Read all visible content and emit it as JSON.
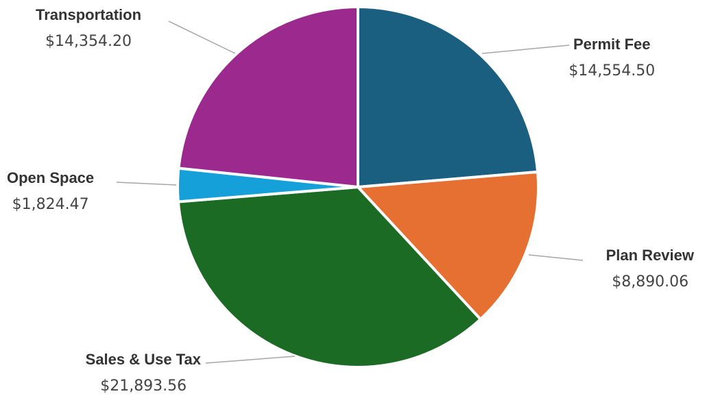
{
  "chart_data": {
    "type": "pie",
    "title": "",
    "start_angle_deg": 0,
    "direction": "clockwise",
    "slices": [
      {
        "label": "Permit Fee",
        "value": 14554.5,
        "value_label": "$14,554.50",
        "color": "#1a5e80"
      },
      {
        "label": "Plan Review",
        "value": 8890.06,
        "value_label": "$8,890.06",
        "color": "#e57032"
      },
      {
        "label": "Sales & Use Tax",
        "value": 21893.56,
        "value_label": "$21,893.56",
        "color": "#1b6b24"
      },
      {
        "label": "Open Space",
        "value": 1824.47,
        "value_label": "$1,824.47",
        "color": "#15a0d9"
      },
      {
        "label": "Transportation",
        "value": 14354.2,
        "value_label": "$14,354.20",
        "color": "#9c2a8e"
      }
    ]
  }
}
